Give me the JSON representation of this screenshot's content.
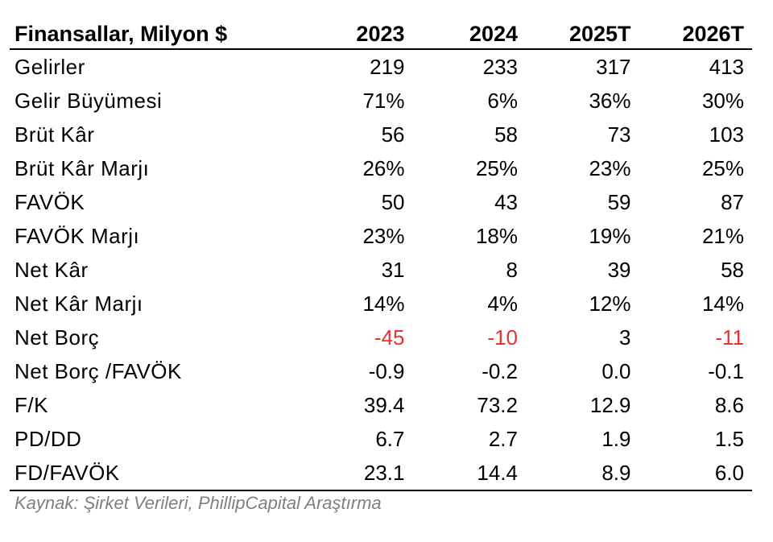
{
  "table": {
    "headers": [
      "Finansallar, Milyon $",
      "2023",
      "2024",
      "2025T",
      "2026T"
    ],
    "rows": [
      {
        "label": "Gelirler",
        "values": [
          "219",
          "233",
          "317",
          "413"
        ]
      },
      {
        "label": "Gelir Büyümesi",
        "values": [
          "71%",
          "6%",
          "36%",
          "30%"
        ]
      },
      {
        "label": "Brüt Kâr",
        "values": [
          "56",
          "58",
          "73",
          "103"
        ]
      },
      {
        "label": "Brüt Kâr Marjı",
        "values": [
          "26%",
          "25%",
          "23%",
          "25%"
        ]
      },
      {
        "label": "FAVÖK",
        "values": [
          "50",
          "43",
          "59",
          "87"
        ]
      },
      {
        "label": "FAVÖK Marjı",
        "values": [
          "23%",
          "18%",
          "19%",
          "21%"
        ]
      },
      {
        "label": "Net Kâr",
        "values": [
          "31",
          "8",
          "39",
          "58"
        ]
      },
      {
        "label": "Net Kâr Marjı",
        "values": [
          "14%",
          "4%",
          "12%",
          "14%"
        ]
      },
      {
        "label": "Net Borç",
        "values": [
          "-45",
          "-10",
          "3",
          "-11"
        ]
      },
      {
        "label": "Net Borç /FAVÖK",
        "values": [
          "-0.9",
          "-0.2",
          "0.0",
          "-0.1"
        ]
      },
      {
        "label": "F/K",
        "values": [
          "39.4",
          "73.2",
          "12.9",
          "8.6"
        ]
      },
      {
        "label": "PD/DD",
        "values": [
          "6.7",
          "2.7",
          "1.9",
          "1.5"
        ]
      },
      {
        "label": "FD/FAVÖK",
        "values": [
          "23.1",
          "14.4",
          "8.9",
          "6.0"
        ]
      }
    ]
  },
  "source": "Kaynak: Şirket Verileri, PhillipCapital Araştırma",
  "colors": {
    "negative": "#e8322b",
    "source_text": "#808080",
    "text": "#000000"
  }
}
